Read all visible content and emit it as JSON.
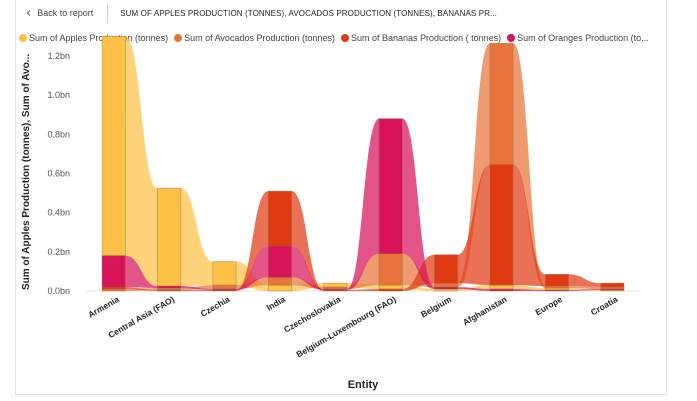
{
  "header": {
    "back_label": "Back to report",
    "title": "SUM OF APPLES PRODUCTION (TONNES), AVOCADOS PRODUCTION (TONNES), BANANAS PR..."
  },
  "legend": [
    {
      "label": "Sum of Apples Production (tonnes)",
      "color": "#ffc247"
    },
    {
      "label": "Sum of Avocados Production (tonnes)",
      "color": "#e8743b"
    },
    {
      "label": "Sum of Bananas  Production ( tonnes)",
      "color": "#e03a13"
    },
    {
      "label": "Sum of Oranges  Production (to...",
      "color": "#d8135a"
    }
  ],
  "chart_data": {
    "type": "bar",
    "title": "",
    "xlabel": "Entity",
    "ylabel": "Sum of Apples Production (tonnes), Sum of Avo...",
    "ylim": [
      0,
      1.2
    ],
    "y_unit": "bn",
    "yticks": [
      "0.0bn",
      "0.2bn",
      "0.4bn",
      "0.6bn",
      "0.8bn",
      "1.0bn",
      "1.2bn"
    ],
    "categories": [
      "Armenia",
      "Central Asia (FAO)",
      "Czechia",
      "India",
      "Czechoslovakia",
      "Belgium-Luxembourg (FAO)",
      "Belgium",
      "Afghanistan",
      "Europe",
      "Croatia"
    ],
    "series": [
      {
        "name": "Sum of Apples Production (tonnes)",
        "color": "#ffc247",
        "values": [
          1.12,
          0.5,
          0.12,
          0.03,
          0.02,
          0.02,
          0.01,
          0.02,
          0.01,
          0.005
        ]
      },
      {
        "name": "Sum of Avocados Production (tonnes)",
        "color": "#e8743b",
        "values": [
          0.01,
          0.01,
          0.02,
          0.04,
          0.01,
          0.16,
          0.02,
          0.62,
          0.01,
          0.01
        ]
      },
      {
        "name": "Sum of Bananas  Production ( tonnes)",
        "color": "#e03a13",
        "values": [
          0.01,
          0.005,
          0.005,
          0.28,
          0.005,
          0.01,
          0.145,
          0.615,
          0.06,
          0.02
        ]
      },
      {
        "name": "Sum of Oranges  Production (to...",
        "color": "#d8135a",
        "values": [
          0.16,
          0.01,
          0.005,
          0.16,
          0.005,
          0.69,
          0.01,
          0.01,
          0.005,
          0.005
        ]
      }
    ]
  }
}
